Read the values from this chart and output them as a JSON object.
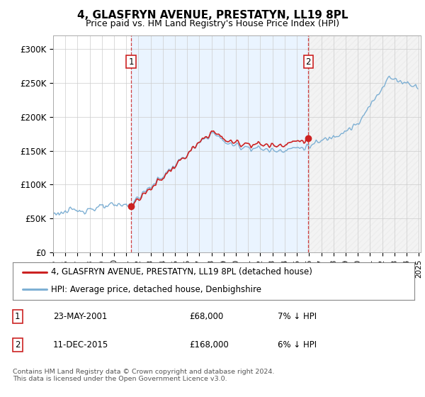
{
  "title": "4, GLASFRYN AVENUE, PRESTATYN, LL19 8PL",
  "subtitle": "Price paid vs. HM Land Registry's House Price Index (HPI)",
  "legend_line1": "4, GLASFRYN AVENUE, PRESTATYN, LL19 8PL (detached house)",
  "legend_line2": "HPI: Average price, detached house, Denbighshire",
  "sale1_date_str": "23-MAY-2001",
  "sale1_price_str": "£68,000",
  "sale1_hpi_str": "7% ↓ HPI",
  "sale2_date_str": "11-DEC-2015",
  "sale2_price_str": "£168,000",
  "sale2_hpi_str": "6% ↓ HPI",
  "footer": "Contains HM Land Registry data © Crown copyright and database right 2024.\nThis data is licensed under the Open Government Licence v3.0.",
  "hpi_color": "#7eb0d4",
  "sale_color": "#cc2222",
  "vline_color": "#cc2222",
  "background_color": "#ffffff",
  "grid_color": "#cccccc",
  "fill_between_color": "#ddeeff",
  "fill_between_alpha": 0.5,
  "ylim": [
    0,
    320000
  ],
  "yticks": [
    0,
    50000,
    100000,
    150000,
    200000,
    250000,
    300000
  ],
  "ytick_labels": [
    "£0",
    "£50K",
    "£100K",
    "£150K",
    "£200K",
    "£250K",
    "£300K"
  ]
}
